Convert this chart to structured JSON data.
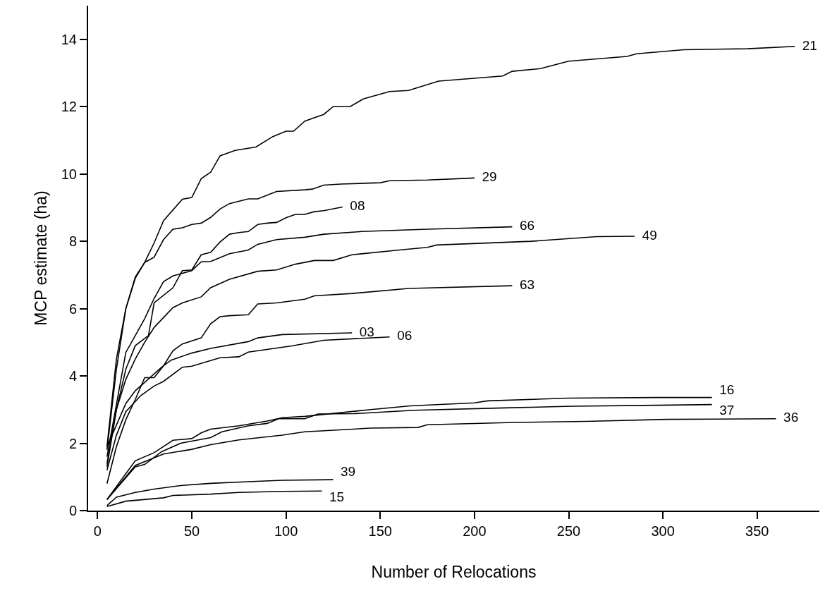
{
  "chart_data": {
    "type": "line",
    "xlabel": "Number of Relocations",
    "ylabel": "MCP estimate (ha)",
    "xlim": [
      -5,
      383
    ],
    "ylim": [
      0,
      15
    ],
    "xticks": [
      0,
      50,
      100,
      150,
      200,
      250,
      300,
      350
    ],
    "yticks": [
      0,
      2,
      4,
      6,
      8,
      10,
      12,
      14
    ],
    "marker": "none",
    "line_style": "solid",
    "series": [
      {
        "name": "21",
        "color": "#000000",
        "x": [
          5,
          10,
          15,
          20,
          25,
          30,
          35,
          45,
          50,
          55,
          60,
          65,
          73,
          84,
          93,
          100,
          104,
          110,
          120,
          125,
          134,
          141,
          155,
          165,
          181,
          215,
          220,
          235,
          250,
          281,
          286,
          311,
          345,
          370
        ],
        "values": [
          1.9,
          4.5,
          6.0,
          6.94,
          7.37,
          7.95,
          8.61,
          9.25,
          9.3,
          9.86,
          10.05,
          10.54,
          10.7,
          10.8,
          11.11,
          11.27,
          11.27,
          11.57,
          11.77,
          12.0,
          12.0,
          12.23,
          12.45,
          12.48,
          12.76,
          12.91,
          13.05,
          13.13,
          13.35,
          13.49,
          13.57,
          13.69,
          13.72,
          13.79
        ]
      },
      {
        "name": "29",
        "color": "#000000",
        "x": [
          5,
          10,
          15,
          20,
          25,
          30,
          35,
          40,
          45,
          50,
          55,
          60,
          65,
          70,
          80,
          85,
          95,
          110,
          114,
          120,
          129,
          150,
          155,
          175,
          200
        ],
        "values": [
          1.8,
          4.2,
          6.0,
          6.9,
          7.37,
          7.53,
          8.05,
          8.36,
          8.4,
          8.5,
          8.54,
          8.71,
          8.96,
          9.12,
          9.26,
          9.26,
          9.48,
          9.53,
          9.55,
          9.67,
          9.7,
          9.74,
          9.8,
          9.82,
          9.88
        ]
      },
      {
        "name": "08",
        "color": "#000000",
        "x": [
          5,
          10,
          15,
          20,
          27,
          30,
          40,
          45,
          50,
          55,
          60,
          65,
          70,
          75,
          80,
          85,
          90,
          95,
          100,
          105,
          110,
          115,
          120,
          130
        ],
        "values": [
          1.3,
          3.0,
          4.2,
          4.9,
          5.2,
          6.17,
          6.62,
          7.13,
          7.15,
          7.6,
          7.67,
          7.98,
          8.21,
          8.26,
          8.29,
          8.5,
          8.54,
          8.56,
          8.7,
          8.8,
          8.8,
          8.88,
          8.91,
          9.02
        ]
      },
      {
        "name": "66",
        "color": "#000000",
        "x": [
          5,
          15,
          20,
          25,
          30,
          35,
          40,
          50,
          55,
          60,
          70,
          80,
          85,
          95,
          110,
          120,
          140,
          175,
          220
        ],
        "values": [
          1.6,
          4.7,
          5.2,
          5.7,
          6.3,
          6.8,
          6.97,
          7.13,
          7.39,
          7.4,
          7.63,
          7.74,
          7.91,
          8.05,
          8.12,
          8.21,
          8.29,
          8.36,
          8.43
        ]
      },
      {
        "name": "49",
        "color": "#000000",
        "x": [
          5,
          10,
          15,
          20,
          25,
          30,
          40,
          45,
          55,
          60,
          70,
          85,
          95,
          105,
          115,
          125,
          135,
          160,
          175,
          180,
          230,
          265,
          285
        ],
        "values": [
          1.4,
          3.0,
          3.9,
          4.5,
          5.0,
          5.44,
          6.03,
          6.17,
          6.35,
          6.62,
          6.87,
          7.11,
          7.15,
          7.32,
          7.43,
          7.43,
          7.6,
          7.74,
          7.82,
          7.89,
          8.0,
          8.14,
          8.15
        ]
      },
      {
        "name": "63",
        "color": "#000000",
        "x": [
          5,
          10,
          15,
          20,
          25,
          30,
          35,
          40,
          45,
          55,
          60,
          65,
          70,
          80,
          85,
          95,
          110,
          115,
          135,
          165,
          220
        ],
        "values": [
          0.8,
          1.9,
          2.7,
          3.3,
          3.95,
          3.95,
          4.3,
          4.75,
          4.95,
          5.13,
          5.55,
          5.76,
          5.79,
          5.82,
          6.14,
          6.17,
          6.28,
          6.38,
          6.45,
          6.6,
          6.68
        ]
      },
      {
        "name": "03",
        "color": "#000000",
        "x": [
          5,
          15,
          20,
          34,
          39,
          50,
          60,
          80,
          85,
          98,
          135
        ],
        "values": [
          1.9,
          3.18,
          3.56,
          4.26,
          4.47,
          4.68,
          4.82,
          5.02,
          5.13,
          5.23,
          5.28
        ]
      },
      {
        "name": "06",
        "color": "#000000",
        "x": [
          5,
          10,
          15,
          23,
          30,
          35,
          45,
          50,
          65,
          75,
          80,
          103,
          120,
          155
        ],
        "values": [
          1.2,
          2.24,
          2.94,
          3.42,
          3.7,
          3.84,
          4.26,
          4.29,
          4.54,
          4.57,
          4.71,
          4.89,
          5.06,
          5.16
        ]
      },
      {
        "name": "16",
        "color": "#000000",
        "x": [
          5,
          20,
          30,
          40,
          50,
          55,
          60,
          75,
          90,
          98,
          110,
          145,
          166,
          200,
          207,
          250,
          297,
          326
        ],
        "values": [
          0.33,
          1.48,
          1.72,
          2.09,
          2.14,
          2.31,
          2.42,
          2.52,
          2.66,
          2.76,
          2.8,
          3.0,
          3.11,
          3.2,
          3.26,
          3.34,
          3.36,
          3.36
        ]
      },
      {
        "name": "37",
        "color": "#000000",
        "x": [
          5,
          20,
          25,
          34,
          44,
          60,
          66,
          80,
          90,
          96,
          110,
          117,
          136,
          168,
          216,
          252,
          297,
          326
        ],
        "values": [
          0.33,
          1.3,
          1.37,
          1.75,
          2.0,
          2.17,
          2.34,
          2.52,
          2.59,
          2.73,
          2.73,
          2.87,
          2.88,
          2.98,
          3.05,
          3.1,
          3.13,
          3.15
        ]
      },
      {
        "name": "36",
        "color": "#000000",
        "x": [
          5,
          20,
          35,
          50,
          60,
          75,
          98,
          110,
          145,
          170,
          175,
          221,
          259,
          302,
          360
        ],
        "values": [
          0.33,
          1.34,
          1.68,
          1.82,
          1.96,
          2.1,
          2.24,
          2.34,
          2.45,
          2.47,
          2.55,
          2.62,
          2.65,
          2.71,
          2.73
        ]
      },
      {
        "name": "39",
        "color": "#000000",
        "x": [
          5,
          10,
          20,
          30,
          45,
          60,
          80,
          98,
          125
        ],
        "values": [
          0.15,
          0.4,
          0.54,
          0.64,
          0.75,
          0.81,
          0.86,
          0.9,
          0.92
        ]
      },
      {
        "name": "15",
        "color": "#000000",
        "x": [
          5,
          15,
          35,
          40,
          60,
          75,
          98,
          119
        ],
        "values": [
          0.12,
          0.28,
          0.38,
          0.45,
          0.49,
          0.54,
          0.57,
          0.58
        ]
      }
    ]
  }
}
